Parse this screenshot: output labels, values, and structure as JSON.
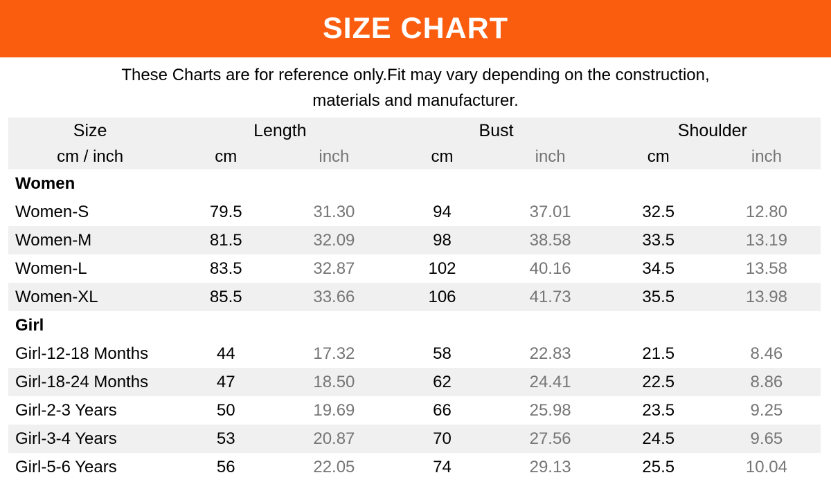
{
  "banner": {
    "title": "SIZE CHART"
  },
  "disclaimer": {
    "line1": "These Charts are for reference only.Fit may vary depending on the construction,",
    "line2": "materials and manufacturer."
  },
  "colors": {
    "banner_bg": "#fb5d0f",
    "banner_text": "#ffffff",
    "header_bg": "#f0f0f0",
    "stripe_bg": "#f0f0f0",
    "inch_text": "#757575",
    "primary_text": "#000000"
  },
  "chart_data": {
    "type": "table",
    "title": "SIZE CHART",
    "group_headers": [
      {
        "label": "Size",
        "span": 1
      },
      {
        "label": "Length",
        "span": 2
      },
      {
        "label": "Bust",
        "span": 2
      },
      {
        "label": "Shoulder",
        "span": 2
      }
    ],
    "sub_headers": [
      "cm / inch",
      "cm",
      "inch",
      "cm",
      "inch",
      "cm",
      "inch"
    ],
    "sections": [
      {
        "name": "Women",
        "rows": [
          [
            "Women-S",
            "79.5",
            "31.30",
            "94",
            "37.01",
            "32.5",
            "12.80"
          ],
          [
            "Women-M",
            "81.5",
            "32.09",
            "98",
            "38.58",
            "33.5",
            "13.19"
          ],
          [
            "Women-L",
            "83.5",
            "32.87",
            "102",
            "40.16",
            "34.5",
            "13.58"
          ],
          [
            "Women-XL",
            "85.5",
            "33.66",
            "106",
            "41.73",
            "35.5",
            "13.98"
          ]
        ]
      },
      {
        "name": "Girl",
        "rows": [
          [
            "Girl-12-18 Months",
            "44",
            "17.32",
            "58",
            "22.83",
            "21.5",
            "8.46"
          ],
          [
            "Girl-18-24 Months",
            "47",
            "18.50",
            "62",
            "24.41",
            "22.5",
            "8.86"
          ],
          [
            "Girl-2-3 Years",
            "50",
            "19.69",
            "66",
            "25.98",
            "23.5",
            "9.25"
          ],
          [
            "Girl-3-4 Years",
            "53",
            "20.87",
            "70",
            "27.56",
            "24.5",
            "9.65"
          ],
          [
            "Girl-5-6 Years",
            "56",
            "22.05",
            "74",
            "29.13",
            "25.5",
            "10.04"
          ]
        ]
      }
    ]
  }
}
